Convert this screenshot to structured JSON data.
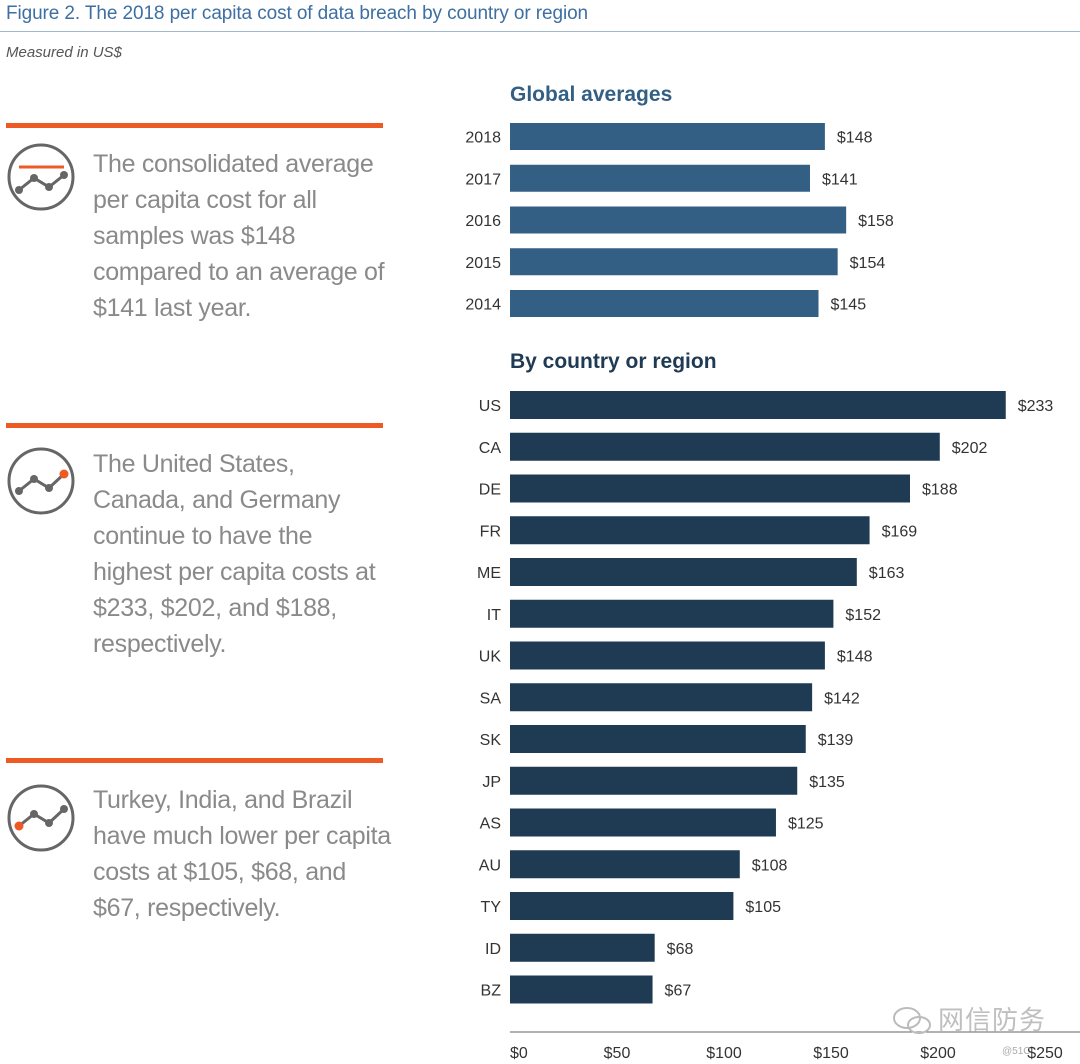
{
  "figure": {
    "title": "Figure 2. The 2018 per capita cost of data breach by country or region",
    "subtitle": "Measured in US$"
  },
  "callouts": [
    {
      "text": "The consolidated average per capita cost for all samples was $148 compared to an average of $141 last year.",
      "icon": "line-chart-icon",
      "accent": "#ee5a24"
    },
    {
      "text": "The United States, Canada, and Germany continue to have the highest per capita costs at $233, $202, and $188, respectively.",
      "icon": "line-chart-icon",
      "accent": "#ee5a24"
    },
    {
      "text": "Turkey, India, and Brazil have much lower per capita costs at $105, $68, and $67, respectively.",
      "icon": "line-chart-icon",
      "accent": "#ee5a24"
    }
  ],
  "watermark": {
    "text": "网信防务",
    "small": "@51C"
  },
  "chart_data": [
    {
      "type": "bar",
      "orientation": "horizontal",
      "title": "Global averages",
      "categories": [
        "2018",
        "2017",
        "2016",
        "2015",
        "2014"
      ],
      "values": [
        148,
        141,
        158,
        154,
        145
      ],
      "value_labels": [
        "$148",
        "$141",
        "$158",
        "$154",
        "$145"
      ],
      "color": "#335f85",
      "xlim": [
        0,
        235
      ]
    },
    {
      "type": "bar",
      "orientation": "horizontal",
      "title": "By country or region",
      "categories": [
        "US",
        "CA",
        "DE",
        "FR",
        "ME",
        "IT",
        "UK",
        "SA",
        "SK",
        "JP",
        "AS",
        "AU",
        "TY",
        "ID",
        "BZ"
      ],
      "values": [
        233,
        202,
        188,
        169,
        163,
        152,
        148,
        142,
        139,
        135,
        125,
        108,
        105,
        68,
        67
      ],
      "value_labels": [
        "$233",
        "$202",
        "$188",
        "$169",
        "$163",
        "$152",
        "$148",
        "$142",
        "$139",
        "$135",
        "$125",
        "$108",
        "$105",
        "$68",
        "$67"
      ],
      "color": "#1f3a53",
      "xlim": [
        0,
        235
      ],
      "xticks": [
        0,
        50,
        100,
        150,
        200,
        250
      ],
      "xtick_labels": [
        "$0",
        "$50",
        "$100",
        "$150",
        "$200",
        "$250"
      ]
    }
  ]
}
